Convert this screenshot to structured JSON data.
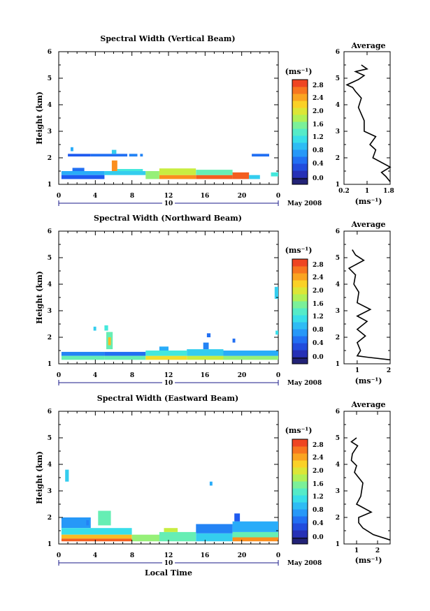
{
  "chart_data": [
    {
      "type": "heatmap",
      "title": "Spectral Width (Vertical Beam)",
      "ylabel": "Height (km)",
      "xlabel": "",
      "x_ticks": [
        "0",
        "4",
        "8",
        "12",
        "16",
        "20",
        "0"
      ],
      "y_ticks": [
        "1",
        "2",
        "3",
        "4",
        "5",
        "6"
      ],
      "xlim": [
        0,
        24
      ],
      "ylim": [
        1,
        6
      ],
      "date_label": "10",
      "month_label": "May 2008",
      "cells": [
        {
          "x0": 1.3,
          "x1": 1.6,
          "y0": 2.25,
          "y1": 2.4,
          "v": 1.0
        },
        {
          "x0": 1.0,
          "x1": 3.5,
          "y0": 2.05,
          "y1": 2.15,
          "v": 0.6
        },
        {
          "x0": 3.5,
          "x1": 7.5,
          "y0": 2.05,
          "y1": 2.15,
          "v": 0.7
        },
        {
          "x0": 5.8,
          "x1": 6.3,
          "y0": 2.15,
          "y1": 2.3,
          "v": 1.2
        },
        {
          "x0": 7.7,
          "x1": 8.6,
          "y0": 2.05,
          "y1": 2.15,
          "v": 0.8
        },
        {
          "x0": 8.9,
          "x1": 9.2,
          "y0": 2.05,
          "y1": 2.15,
          "v": 0.8
        },
        {
          "x0": 21.1,
          "x1": 23.0,
          "y0": 2.05,
          "y1": 2.15,
          "v": 0.7
        },
        {
          "x0": 0.3,
          "x1": 5.0,
          "y0": 1.35,
          "y1": 1.5,
          "v": 1.0
        },
        {
          "x0": 0.3,
          "x1": 5.0,
          "y0": 1.2,
          "y1": 1.35,
          "v": 0.6
        },
        {
          "x0": 1.5,
          "x1": 2.8,
          "y0": 1.5,
          "y1": 1.62,
          "v": 0.7
        },
        {
          "x0": 5.0,
          "x1": 9.5,
          "y0": 1.35,
          "y1": 1.5,
          "v": 1.2
        },
        {
          "x0": 5.8,
          "x1": 6.4,
          "y0": 1.5,
          "y1": 1.9,
          "v": 2.6
        },
        {
          "x0": 6.4,
          "x1": 9.2,
          "y0": 1.5,
          "y1": 1.58,
          "v": 1.4
        },
        {
          "x0": 9.5,
          "x1": 11.0,
          "y0": 1.2,
          "y1": 1.5,
          "v": 1.8
        },
        {
          "x0": 11.0,
          "x1": 15.0,
          "y0": 1.2,
          "y1": 1.35,
          "v": 2.6
        },
        {
          "x0": 11.0,
          "x1": 15.0,
          "y0": 1.35,
          "y1": 1.6,
          "v": 2.0
        },
        {
          "x0": 15.0,
          "x1": 19.0,
          "y0": 1.2,
          "y1": 1.35,
          "v": 2.8
        },
        {
          "x0": 15.0,
          "x1": 19.0,
          "y0": 1.35,
          "y1": 1.55,
          "v": 1.6
        },
        {
          "x0": 19.0,
          "x1": 20.8,
          "y0": 1.2,
          "y1": 1.45,
          "v": 2.8
        },
        {
          "x0": 20.8,
          "x1": 22.0,
          "y0": 1.2,
          "y1": 1.35,
          "v": 1.2
        },
        {
          "x0": 23.2,
          "x1": 24.0,
          "y0": 1.3,
          "y1": 1.45,
          "v": 1.4
        }
      ],
      "colorbar": {
        "unit": "(ms⁻¹)",
        "ticks": [
          "2.8",
          "2.4",
          "2.0",
          "1.6",
          "1.2",
          "0.8",
          "0.4",
          "0.0"
        ],
        "range": [
          0,
          3.0
        ]
      },
      "average": {
        "title": "Average",
        "xlabel": "(ms⁻¹)",
        "x_ticks": [
          "0.2",
          "1",
          "1.8"
        ],
        "x_tick_values": [
          0.2,
          1.0,
          1.8
        ],
        "xlim": [
          0.2,
          1.8
        ],
        "y_ticks": [
          "1",
          "2",
          "3",
          "4",
          "5",
          "6"
        ],
        "ylim": [
          1,
          6
        ],
        "profile": [
          {
            "w": 1.8,
            "h": 1.1
          },
          {
            "w": 1.65,
            "h": 1.3
          },
          {
            "w": 1.5,
            "h": 1.45
          },
          {
            "w": 1.8,
            "h": 1.65
          },
          {
            "w": 1.2,
            "h": 2.0
          },
          {
            "w": 1.3,
            "h": 2.3
          },
          {
            "w": 1.1,
            "h": 2.5
          },
          {
            "w": 1.3,
            "h": 2.8
          },
          {
            "w": 0.9,
            "h": 3.0
          },
          {
            "w": 0.9,
            "h": 3.4
          },
          {
            "w": 0.7,
            "h": 3.9
          },
          {
            "w": 0.8,
            "h": 4.25
          },
          {
            "w": 0.6,
            "h": 4.5
          },
          {
            "w": 0.5,
            "h": 4.65
          },
          {
            "w": 0.3,
            "h": 4.75
          },
          {
            "w": 0.7,
            "h": 4.95
          },
          {
            "w": 0.9,
            "h": 5.1
          },
          {
            "w": 0.6,
            "h": 5.25
          },
          {
            "w": 1.0,
            "h": 5.35
          },
          {
            "w": 0.8,
            "h": 5.5
          }
        ]
      }
    },
    {
      "type": "heatmap",
      "title": "Spectral Width (Northward Beam)",
      "ylabel": "Height (km)",
      "xlabel": "",
      "x_ticks": [
        "0",
        "4",
        "8",
        "12",
        "16",
        "20",
        "0"
      ],
      "y_ticks": [
        "1",
        "2",
        "3",
        "4",
        "5",
        "6"
      ],
      "xlim": [
        0,
        24
      ],
      "ylim": [
        1,
        6
      ],
      "date_label": "10",
      "month_label": "May 2008",
      "cells": [
        {
          "x0": 3.8,
          "x1": 4.1,
          "y0": 2.25,
          "y1": 2.4,
          "v": 1.2
        },
        {
          "x0": 5.0,
          "x1": 5.4,
          "y0": 2.25,
          "y1": 2.45,
          "v": 1.4
        },
        {
          "x0": 5.2,
          "x1": 5.9,
          "y0": 1.55,
          "y1": 2.2,
          "v": 1.6
        },
        {
          "x0": 5.4,
          "x1": 5.7,
          "y0": 1.7,
          "y1": 2.0,
          "v": 2.4
        },
        {
          "x0": 0.3,
          "x1": 5.0,
          "y0": 1.3,
          "y1": 1.45,
          "v": 0.8
        },
        {
          "x0": 0.3,
          "x1": 5.0,
          "y0": 1.15,
          "y1": 1.3,
          "v": 1.6
        },
        {
          "x0": 5.0,
          "x1": 9.5,
          "y0": 1.3,
          "y1": 1.45,
          "v": 0.7
        },
        {
          "x0": 5.0,
          "x1": 9.5,
          "y0": 1.15,
          "y1": 1.3,
          "v": 1.6
        },
        {
          "x0": 9.5,
          "x1": 14.0,
          "y0": 1.15,
          "y1": 1.3,
          "v": 2.2
        },
        {
          "x0": 9.5,
          "x1": 14.0,
          "y0": 1.3,
          "y1": 1.5,
          "v": 1.4
        },
        {
          "x0": 11.0,
          "x1": 12.0,
          "y0": 1.5,
          "y1": 1.65,
          "v": 1.0
        },
        {
          "x0": 14.0,
          "x1": 18.0,
          "y0": 1.15,
          "y1": 1.3,
          "v": 2.0
        },
        {
          "x0": 14.0,
          "x1": 18.0,
          "y0": 1.3,
          "y1": 1.55,
          "v": 1.2
        },
        {
          "x0": 15.8,
          "x1": 16.4,
          "y0": 1.55,
          "y1": 1.8,
          "v": 0.8
        },
        {
          "x0": 16.2,
          "x1": 16.6,
          "y0": 2.0,
          "y1": 2.15,
          "v": 0.7
        },
        {
          "x0": 18.0,
          "x1": 24.0,
          "y0": 1.15,
          "y1": 1.3,
          "v": 1.8
        },
        {
          "x0": 18.0,
          "x1": 24.0,
          "y0": 1.3,
          "y1": 1.5,
          "v": 1.0
        },
        {
          "x0": 19.0,
          "x1": 19.3,
          "y0": 1.8,
          "y1": 1.95,
          "v": 0.7
        },
        {
          "x0": 23.7,
          "x1": 24.0,
          "y0": 2.1,
          "y1": 2.25,
          "v": 1.3
        },
        {
          "x0": 23.6,
          "x1": 24.0,
          "y0": 3.45,
          "y1": 3.9,
          "v": 1.2
        }
      ],
      "colorbar": {
        "unit": "(ms⁻¹)",
        "ticks": [
          "2.8",
          "2.4",
          "2.0",
          "1.6",
          "1.2",
          "0.8",
          "0.4",
          "0.0"
        ],
        "range": [
          0,
          3.0
        ]
      },
      "average": {
        "title": "Average",
        "xlabel": "(ms⁻¹)",
        "x_ticks": [
          "1",
          "2"
        ],
        "x_tick_values": [
          1,
          2
        ],
        "xlim": [
          0.6,
          2.0
        ],
        "y_ticks": [
          "1",
          "2",
          "3",
          "4",
          "5",
          "6"
        ],
        "ylim": [
          1,
          6
        ],
        "profile": [
          {
            "w": 2.0,
            "h": 1.15
          },
          {
            "w": 1.3,
            "h": 1.25
          },
          {
            "w": 1.0,
            "h": 1.3
          },
          {
            "w": 1.1,
            "h": 1.5
          },
          {
            "w": 1.0,
            "h": 1.8
          },
          {
            "w": 1.25,
            "h": 2.05
          },
          {
            "w": 1.0,
            "h": 2.3
          },
          {
            "w": 1.3,
            "h": 2.6
          },
          {
            "w": 1.0,
            "h": 2.8
          },
          {
            "w": 1.4,
            "h": 3.05
          },
          {
            "w": 1.0,
            "h": 3.3
          },
          {
            "w": 1.05,
            "h": 3.7
          },
          {
            "w": 0.9,
            "h": 4.0
          },
          {
            "w": 0.95,
            "h": 4.35
          },
          {
            "w": 0.75,
            "h": 4.6
          },
          {
            "w": 1.2,
            "h": 4.9
          },
          {
            "w": 0.95,
            "h": 5.1
          },
          {
            "w": 0.85,
            "h": 5.3
          }
        ]
      }
    },
    {
      "type": "heatmap",
      "title": "Spectral Width (Eastward Beam)",
      "ylabel": "Height (km)",
      "xlabel": "Local Time",
      "x_ticks": [
        "0",
        "4",
        "8",
        "12",
        "16",
        "20",
        "0"
      ],
      "y_ticks": [
        "1",
        "2",
        "3",
        "4",
        "5",
        "6"
      ],
      "xlim": [
        0,
        24
      ],
      "ylim": [
        1,
        6
      ],
      "date_label": "10",
      "month_label": "May 2008",
      "cells": [
        {
          "x0": 0.7,
          "x1": 1.1,
          "y0": 3.35,
          "y1": 3.8,
          "v": 1.2
        },
        {
          "x0": 16.5,
          "x1": 16.8,
          "y0": 3.2,
          "y1": 3.35,
          "v": 1.0
        },
        {
          "x0": 0.3,
          "x1": 3.5,
          "y0": 1.6,
          "y1": 2.0,
          "v": 0.9
        },
        {
          "x0": 3.0,
          "x1": 3.3,
          "y0": 1.7,
          "y1": 1.9,
          "v": 0.8
        },
        {
          "x0": 4.3,
          "x1": 5.7,
          "y0": 1.7,
          "y1": 2.25,
          "v": 1.6
        },
        {
          "x0": 0.3,
          "x1": 8.0,
          "y0": 1.35,
          "y1": 1.6,
          "v": 1.3
        },
        {
          "x0": 0.3,
          "x1": 8.0,
          "y0": 1.2,
          "y1": 1.35,
          "v": 2.4
        },
        {
          "x0": 0.3,
          "x1": 8.0,
          "y0": 1.1,
          "y1": 1.2,
          "v": 2.8
        },
        {
          "x0": 8.0,
          "x1": 11.0,
          "y0": 1.1,
          "y1": 1.35,
          "v": 1.8
        },
        {
          "x0": 11.0,
          "x1": 15.0,
          "y0": 1.1,
          "y1": 1.45,
          "v": 1.6
        },
        {
          "x0": 11.5,
          "x1": 13.0,
          "y0": 1.45,
          "y1": 1.6,
          "v": 2.0
        },
        {
          "x0": 15.0,
          "x1": 19.0,
          "y0": 1.1,
          "y1": 1.4,
          "v": 1.2
        },
        {
          "x0": 15.0,
          "x1": 19.0,
          "y0": 1.4,
          "y1": 1.75,
          "v": 0.8
        },
        {
          "x0": 19.0,
          "x1": 24.0,
          "y0": 1.1,
          "y1": 1.25,
          "v": 2.6
        },
        {
          "x0": 19.0,
          "x1": 24.0,
          "y0": 1.25,
          "y1": 1.45,
          "v": 1.6
        },
        {
          "x0": 19.0,
          "x1": 24.0,
          "y0": 1.45,
          "y1": 1.85,
          "v": 1.0
        },
        {
          "x0": 19.2,
          "x1": 19.8,
          "y0": 1.85,
          "y1": 2.15,
          "v": 0.6
        }
      ],
      "colorbar": {
        "unit": "(ms⁻¹)",
        "ticks": [
          "2.8",
          "2.4",
          "2.0",
          "1.6",
          "1.2",
          "0.8",
          "0.4",
          "0.0"
        ],
        "range": [
          0,
          3.0
        ]
      },
      "average": {
        "title": "Average",
        "xlabel": "(ms⁻¹)",
        "x_ticks": [
          "1",
          "2"
        ],
        "x_tick_values": [
          1,
          2
        ],
        "xlim": [
          0.4,
          2.6
        ],
        "y_ticks": [
          "1",
          "2",
          "3",
          "4",
          "5",
          "6"
        ],
        "ylim": [
          1,
          6
        ],
        "profile": [
          {
            "w": 2.6,
            "h": 1.15
          },
          {
            "w": 1.8,
            "h": 1.35
          },
          {
            "w": 1.3,
            "h": 1.6
          },
          {
            "w": 1.1,
            "h": 1.8
          },
          {
            "w": 1.1,
            "h": 2.0
          },
          {
            "w": 1.7,
            "h": 2.2
          },
          {
            "w": 1.0,
            "h": 2.5
          },
          {
            "w": 1.2,
            "h": 2.8
          },
          {
            "w": 1.3,
            "h": 3.3
          },
          {
            "w": 0.9,
            "h": 3.7
          },
          {
            "w": 1.0,
            "h": 3.95
          },
          {
            "w": 0.75,
            "h": 4.15
          },
          {
            "w": 0.8,
            "h": 4.4
          },
          {
            "w": 1.05,
            "h": 4.7
          },
          {
            "w": 0.75,
            "h": 4.85
          },
          {
            "w": 1.0,
            "h": 5.0
          }
        ]
      }
    }
  ]
}
